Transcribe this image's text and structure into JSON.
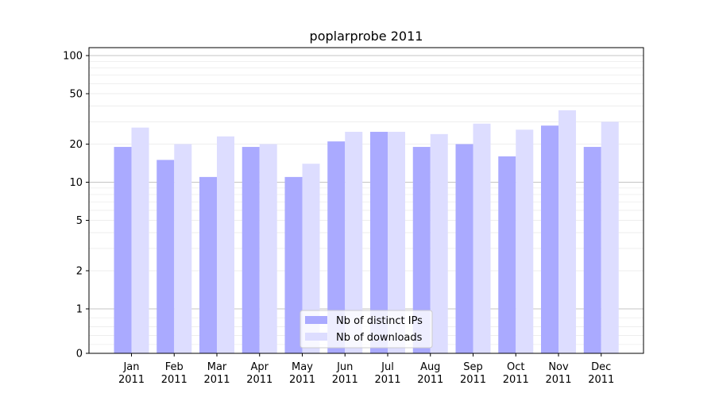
{
  "chart_data": {
    "type": "bar",
    "title": "poplarprobe 2011",
    "xlabel": "",
    "ylabel": "",
    "y_scale": "symlog",
    "ylim": [
      0,
      120
    ],
    "y_ticks": [
      0,
      1,
      2,
      5,
      10,
      20,
      50,
      100
    ],
    "grid": true,
    "legend_position": "bottom-center",
    "categories": [
      [
        "Jan",
        "2011"
      ],
      [
        "Feb",
        "2011"
      ],
      [
        "Mar",
        "2011"
      ],
      [
        "Apr",
        "2011"
      ],
      [
        "May",
        "2011"
      ],
      [
        "Jun",
        "2011"
      ],
      [
        "Jul",
        "2011"
      ],
      [
        "Aug",
        "2011"
      ],
      [
        "Sep",
        "2011"
      ],
      [
        "Oct",
        "2011"
      ],
      [
        "Nov",
        "2011"
      ],
      [
        "Dec",
        "2011"
      ]
    ],
    "series": [
      {
        "name": "Nb of distinct IPs",
        "color": "#aaaaff",
        "values": [
          19,
          15,
          11,
          19,
          11,
          21,
          25,
          19,
          20,
          16,
          28,
          19
        ]
      },
      {
        "name": "Nb of downloads",
        "color": "#ddddff",
        "values": [
          27,
          20,
          23,
          20,
          14,
          25,
          25,
          24,
          29,
          26,
          37,
          30
        ]
      }
    ]
  }
}
